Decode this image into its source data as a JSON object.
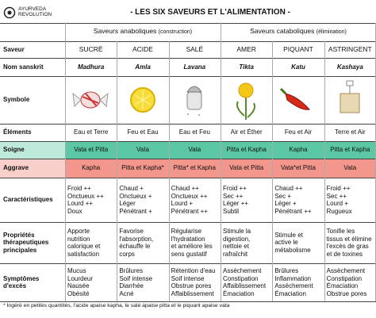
{
  "header": {
    "title": "- LES SIX SAVEURS ET L'ALIMENTATION -",
    "logo": [
      "AYURVEDA",
      "REVOLUTION"
    ]
  },
  "table": {
    "groups": [
      {
        "label": "Saveurs anaboliques",
        "note": "(construction)"
      },
      {
        "label": "Saveurs cataboliques",
        "note": "(élimination)"
      }
    ],
    "row_labels": [
      [
        "Saveur"
      ],
      [
        "Nom sanskrit"
      ],
      [
        "Symbole"
      ],
      [
        "Éléments"
      ],
      [
        "Soigne"
      ],
      [
        "Aggrave"
      ],
      [
        "Caractéristiques"
      ],
      [
        "Propriétés",
        "thérapeutiques",
        "principales"
      ],
      [
        "Symptômes",
        "d'excès"
      ]
    ],
    "columns": [
      "SUCRÉ",
      "ACIDE",
      "SALÉ",
      "AMER",
      "PIQUANT",
      "ASTRINGENT"
    ],
    "sanskrit": [
      "Madhura",
      "Amla",
      "Lavana",
      "Tikta",
      "Katu",
      "Kashaya"
    ],
    "elements": [
      "Eau et Terre",
      "Feu et Eau",
      "Eau et Feu",
      "Air et Éther",
      "Feu et Air",
      "Terre et Air"
    ],
    "soigne": [
      "Vata et Pitta",
      "Vata",
      "Vata",
      "Pitta et Kapha",
      "Kapha",
      "Pitta et Kapha"
    ],
    "aggrave": [
      "Kapha",
      "Pitta et Kapha*",
      "Pitta* et Kapha",
      "Vata et Pitta",
      "Vata*et Pitta",
      "Vata"
    ],
    "caracteristiques": [
      [
        "Froid ++",
        "Onctueux ++",
        "Lourd ++",
        "Doux"
      ],
      [
        "Chaud +",
        "Onctueux +",
        "Léger",
        "Pénétrant +"
      ],
      [
        "Chaud ++",
        "Onctueux ++",
        "Lourd +",
        "Pénétrant ++"
      ],
      [
        "Froid ++",
        "Sec ++",
        "Léger ++",
        "Subtil"
      ],
      [
        "Chaud ++",
        "Sec +",
        "Léger +",
        "Pénétrant ++"
      ],
      [
        "Froid ++",
        "Sec ++",
        "Lourd +",
        "Rugueux"
      ]
    ],
    "proprietes": [
      [
        "Apporte",
        "nutrition",
        "calorique et",
        "satisfaction"
      ],
      [
        "Favorise",
        "l'absorption,",
        "échauffe le",
        "corps"
      ],
      [
        "Régularise",
        "l'hydratation",
        "et améliore les",
        "sens gustatif"
      ],
      [
        "Stimule la",
        "digestion,",
        "nettoie et",
        "rafraîchit"
      ],
      [
        "Stimule et",
        "active le",
        "métabolisme"
      ],
      [
        "Tonifie les",
        "tissus et élimine",
        "l'excès de gras",
        "et de toxines"
      ]
    ],
    "symptomes": [
      [
        "Mucus",
        "Lourdeur",
        "Nausée",
        "Obésité"
      ],
      [
        "Brûlures",
        "Soif intense",
        "Diarrhée",
        "Acné"
      ],
      [
        "Rétention d'eau",
        "Soif intense",
        "Obstrue pores",
        "Affaiblissement"
      ],
      [
        "Assèchement",
        "Constipation",
        "Affaiblissement",
        "Émaciation"
      ],
      [
        "Brûlures",
        "Inflammation",
        "Assèchement",
        "Émaciation"
      ],
      [
        "Assèchement",
        "Constipation",
        "Émaciation",
        "Obstrue pores"
      ]
    ]
  },
  "footnote": "* Ingéré en petites quantités, l'acide apaise kapha, le salé apaise pitta et le piquant apaise vata"
}
